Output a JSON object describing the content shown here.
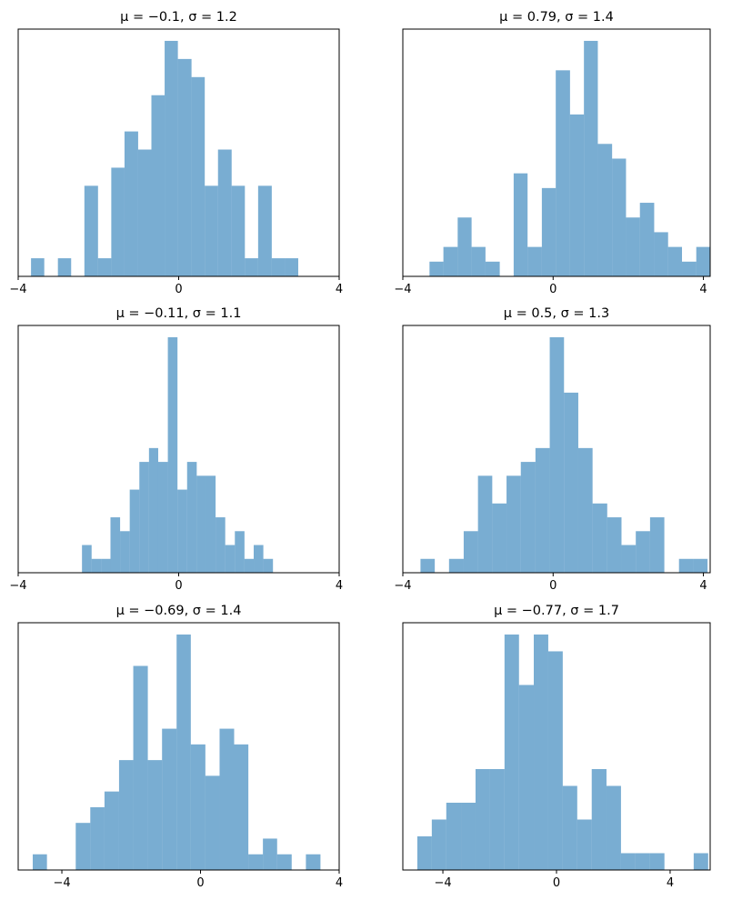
{
  "chart_data": [
    {
      "type": "histogram",
      "title": "μ = −0.1,    σ = 1.2",
      "color": "#1f77b4",
      "alpha": 0.6,
      "bins": [
        -3.68,
        -3.35,
        -3.01,
        -2.68,
        -2.35,
        -2.01,
        -1.68,
        -1.35,
        -1.01,
        -0.68,
        -0.35,
        -0.02,
        0.32,
        0.65,
        0.98,
        1.32,
        1.65,
        1.98,
        2.32,
        2.65,
        2.98
      ],
      "counts": [
        1,
        0,
        1,
        0,
        5,
        1,
        6,
        8,
        7,
        10,
        13,
        12,
        11,
        5,
        7,
        5,
        1,
        5,
        1,
        1
      ],
      "xlim": [
        -4,
        4
      ],
      "xticks": [
        {
          "value": -4,
          "label": "−4"
        },
        0,
        4
      ],
      "ylim": [
        0,
        13.65
      ]
    },
    {
      "type": "histogram",
      "title": "μ = 0.79,    σ = 1.4",
      "color": "#1f77b4",
      "alpha": 0.6,
      "bins": [
        -3.29,
        -2.92,
        -2.54,
        -2.17,
        -1.8,
        -1.42,
        -1.05,
        -0.68,
        -0.3,
        0.07,
        0.45,
        0.82,
        1.19,
        1.57,
        1.94,
        2.31,
        2.69,
        3.06,
        3.43,
        3.81,
        4.18
      ],
      "counts": [
        1,
        2,
        4,
        2,
        1,
        0,
        7,
        2,
        6,
        14,
        11,
        16,
        9,
        8,
        4,
        5,
        3,
        2,
        1,
        2
      ],
      "xlim": [
        -4,
        4.18
      ],
      "xticks": [
        {
          "value": -4,
          "label": "−4"
        },
        0,
        4
      ],
      "ylim": [
        0,
        16.8
      ]
    },
    {
      "type": "histogram",
      "title": "μ = −0.11,    σ = 1.1",
      "color": "#1f77b4",
      "alpha": 0.6,
      "bins": [
        -2.41,
        -2.17,
        -1.93,
        -1.7,
        -1.46,
        -1.22,
        -0.98,
        -0.74,
        -0.51,
        -0.27,
        -0.03,
        0.21,
        0.45,
        0.68,
        0.92,
        1.16,
        1.4,
        1.64,
        1.87,
        2.11,
        2.35
      ],
      "counts": [
        2,
        1,
        1,
        4,
        3,
        6,
        8,
        9,
        8,
        17,
        6,
        8,
        7,
        7,
        4,
        2,
        3,
        1,
        2,
        1
      ],
      "xlim": [
        -4,
        4
      ],
      "xticks": [
        {
          "value": -4,
          "label": "−4"
        },
        0,
        4
      ],
      "ylim": [
        0,
        17.85
      ]
    },
    {
      "type": "histogram",
      "title": "μ = 0.5,    σ = 1.3",
      "color": "#1f77b4",
      "alpha": 0.6,
      "bins": [
        -3.53,
        -3.15,
        -2.77,
        -2.38,
        -2.0,
        -1.62,
        -1.24,
        -0.86,
        -0.47,
        -0.09,
        0.29,
        0.67,
        1.05,
        1.44,
        1.82,
        2.2,
        2.58,
        2.96,
        3.35,
        3.73,
        4.11
      ],
      "counts": [
        1,
        0,
        1,
        3,
        7,
        5,
        7,
        8,
        9,
        17,
        13,
        9,
        5,
        4,
        2,
        3,
        4,
        0,
        1,
        1
      ],
      "xlim": [
        -4,
        4.18
      ],
      "xticks": [
        {
          "value": -4,
          "label": "−4"
        },
        0,
        4
      ],
      "ylim": [
        0,
        17.85
      ]
    },
    {
      "type": "histogram",
      "title": "μ = −0.69,    σ = 1.4",
      "color": "#1f77b4",
      "alpha": 0.6,
      "bins": [
        -4.84,
        -4.43,
        -4.01,
        -3.6,
        -3.18,
        -2.77,
        -2.35,
        -1.94,
        -1.52,
        -1.11,
        -0.69,
        -0.28,
        0.14,
        0.55,
        0.97,
        1.38,
        1.8,
        2.21,
        2.63,
        3.04,
        3.46
      ],
      "counts": [
        1,
        0,
        0,
        3,
        4,
        5,
        7,
        13,
        7,
        9,
        15,
        8,
        6,
        9,
        8,
        1,
        2,
        1,
        0,
        1
      ],
      "xlim": [
        -5.26,
        4
      ],
      "xticks": [
        {
          "value": -4,
          "label": "−4"
        },
        0,
        4
      ],
      "ylim": [
        0,
        15.75
      ]
    },
    {
      "type": "histogram",
      "title": "μ = −0.77,    σ = 1.7",
      "color": "#1f77b4",
      "alpha": 0.6,
      "bins": [
        -4.9,
        -4.39,
        -3.88,
        -3.36,
        -2.85,
        -2.34,
        -1.83,
        -1.32,
        -0.8,
        -0.29,
        0.22,
        0.73,
        1.24,
        1.76,
        2.27,
        2.78,
        3.29,
        3.8,
        4.32,
        4.83,
        5.34
      ],
      "counts": [
        2,
        3,
        4,
        4,
        6,
        6,
        14,
        11,
        14,
        13,
        5,
        3,
        6,
        5,
        1,
        1,
        1,
        0,
        0,
        1
      ],
      "xlim": [
        -5.41,
        5.41
      ],
      "xticks": [
        {
          "value": -4,
          "label": "−4"
        },
        0,
        4
      ],
      "ylim": [
        0,
        14.7
      ]
    }
  ]
}
